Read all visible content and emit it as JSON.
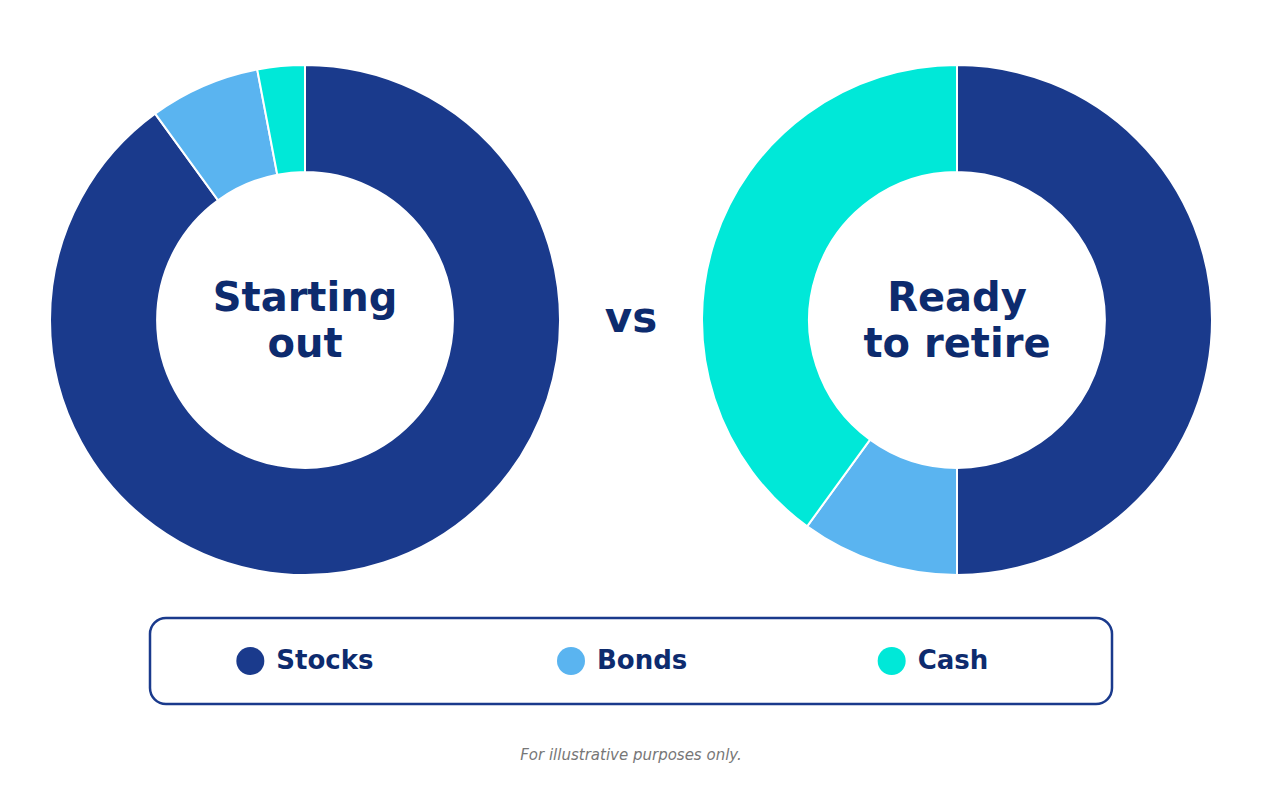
{
  "chart_data": [
    {
      "type": "pie",
      "title": "Starting\nout",
      "categories": [
        "Stocks",
        "Bonds",
        "Cash"
      ],
      "values": [
        90,
        7,
        3
      ],
      "colors": [
        "#1a3a8c",
        "#5ab4f0",
        "#00e8d8"
      ],
      "legend": "bottom",
      "annotations": [
        "vs"
      ]
    },
    {
      "type": "pie",
      "title": "Ready\nto retire",
      "values": [
        50,
        10,
        40
      ],
      "colors": [
        "#1a3a8c",
        "#5ab4f0",
        "#00e8d8"
      ],
      "annotations": [
        "For illustrative purposes only."
      ]
    }
  ]
}
